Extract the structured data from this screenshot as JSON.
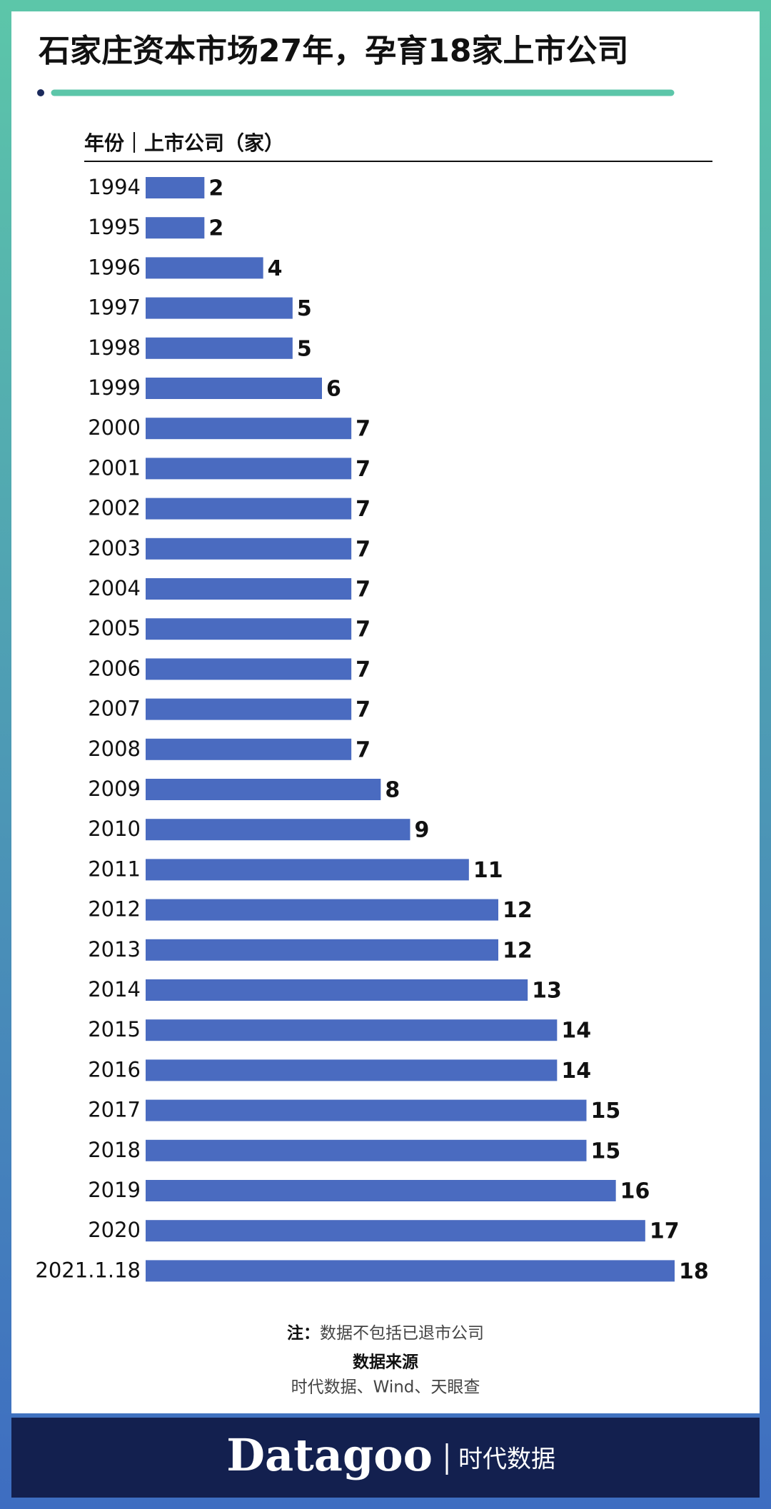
{
  "title": "石家庄资本市场27年，孕育18家上市公司",
  "chart_data": {
    "type": "bar",
    "orientation": "horizontal",
    "header": "年份｜上市公司（家）",
    "categories": [
      "1994",
      "1995",
      "1996",
      "1997",
      "1998",
      "1999",
      "2000",
      "2001",
      "2002",
      "2003",
      "2004",
      "2005",
      "2006",
      "2007",
      "2008",
      "2009",
      "2010",
      "2011",
      "2012",
      "2013",
      "2014",
      "2015",
      "2016",
      "2017",
      "2018",
      "2019",
      "2020",
      "2021.1.18"
    ],
    "values": [
      2,
      2,
      4,
      5,
      5,
      6,
      7,
      7,
      7,
      7,
      7,
      7,
      7,
      7,
      7,
      8,
      9,
      11,
      12,
      12,
      13,
      14,
      14,
      15,
      15,
      16,
      17,
      18
    ],
    "color": "#4a6bc0"
  },
  "notes": {
    "note_label": "注：",
    "note": "数据不包括已退市公司",
    "source_label": "数据来源",
    "source": "时代数据、Wind、天眼查"
  },
  "footer": {
    "brand": "Datagoo",
    "brand_cn": "时代数据"
  }
}
